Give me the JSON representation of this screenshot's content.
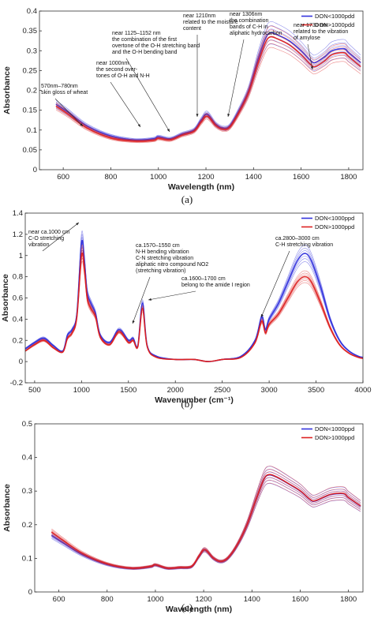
{
  "chart_data": [
    {
      "type": "line",
      "panel_label": "(a)",
      "xlabel": "Wavelength (nm)",
      "ylabel": "Absorbance",
      "xlim": [
        500,
        1860
      ],
      "ylim": [
        0,
        0.4
      ],
      "x_ticks": [
        600,
        800,
        1000,
        1200,
        1400,
        1600,
        1800
      ],
      "y_ticks": [
        0,
        0.05,
        0.1,
        0.15,
        0.2,
        0.25,
        0.3,
        0.35,
        0.4
      ],
      "legend_position": "top-right",
      "series": [
        {
          "name": "DON<1000pdd",
          "color": "#3333dd",
          "x": [
            570,
            620,
            700,
            800,
            900,
            980,
            1000,
            1050,
            1100,
            1150,
            1180,
            1205,
            1240,
            1270,
            1300,
            1340,
            1380,
            1420,
            1450,
            1470,
            1500,
            1550,
            1600,
            1640,
            1660,
            1700,
            1730,
            1780,
            1800,
            1850
          ],
          "y": [
            0.165,
            0.145,
            0.11,
            0.085,
            0.075,
            0.078,
            0.083,
            0.078,
            0.09,
            0.1,
            0.125,
            0.14,
            0.115,
            0.105,
            0.11,
            0.15,
            0.2,
            0.28,
            0.33,
            0.345,
            0.34,
            0.325,
            0.3,
            0.275,
            0.27,
            0.285,
            0.3,
            0.305,
            0.295,
            0.27
          ]
        },
        {
          "name": "DON>1000pdd",
          "color": "#dd2222",
          "x": [
            570,
            620,
            700,
            800,
            900,
            980,
            1000,
            1050,
            1100,
            1150,
            1180,
            1205,
            1240,
            1270,
            1300,
            1340,
            1380,
            1420,
            1450,
            1470,
            1500,
            1550,
            1600,
            1640,
            1660,
            1700,
            1730,
            1780,
            1800,
            1850
          ],
          "y": [
            0.16,
            0.14,
            0.105,
            0.08,
            0.072,
            0.074,
            0.079,
            0.075,
            0.087,
            0.097,
            0.12,
            0.135,
            0.112,
            0.102,
            0.107,
            0.145,
            0.195,
            0.27,
            0.32,
            0.335,
            0.33,
            0.315,
            0.29,
            0.265,
            0.26,
            0.275,
            0.29,
            0.295,
            0.285,
            0.26
          ]
        }
      ],
      "annotations": [
        {
          "lines": [
            "570nm–780nm",
            "skin gloss of wheat"
          ],
          "x": 740,
          "y": 0.16
        },
        {
          "lines": [
            "near 1000nm",
            "the second over-",
            "tones of O-H and N-H"
          ],
          "x": 960,
          "y": 0.12
        },
        {
          "lines": [
            "near 1125–1152 nm",
            "the combination of the first",
            "overtone of the O-H stretching band",
            "and the O-H bending band"
          ],
          "x": 1125,
          "y": 0.095
        },
        {
          "lines": [
            "near 1210nm",
            "related to the moisture",
            "content"
          ],
          "x": 1210,
          "y": 0.16
        },
        {
          "lines": [
            "near 1306nm",
            "the combination",
            "bands of C-H in",
            "aliphatic hydrocarbon"
          ],
          "x": 1306,
          "y": 0.145
        },
        {
          "lines": [
            "near 1730 nm",
            "related to the vibration",
            "of amylose"
          ],
          "x": 1650,
          "y": 0.315
        }
      ]
    },
    {
      "type": "line",
      "panel_label": "(b)",
      "xlabel": "Wavenumber (cm⁻¹)",
      "ylabel": "Absorbance",
      "xlim": [
        400,
        4000
      ],
      "ylim": [
        -0.2,
        1.4
      ],
      "x_ticks": [
        500,
        1000,
        1500,
        2000,
        2500,
        3000,
        3500,
        4000
      ],
      "y_ticks": [
        -0.2,
        0,
        0.2,
        0.4,
        0.6,
        0.8,
        1.0,
        1.2,
        1.4
      ],
      "legend_position": "top-right",
      "series": [
        {
          "name": "DON<1000ppd",
          "color": "#3333dd",
          "x": [
            400,
            500,
            600,
            700,
            800,
            850,
            900,
            950,
            1000,
            1030,
            1060,
            1100,
            1150,
            1200,
            1300,
            1400,
            1500,
            1550,
            1600,
            1650,
            1700,
            1800,
            2000,
            2200,
            2350,
            2500,
            2700,
            2850,
            2920,
            2960,
            3000,
            3100,
            3200,
            3300,
            3380,
            3450,
            3550,
            3650,
            3750,
            3850,
            3950,
            4000
          ],
          "y": [
            0.12,
            0.18,
            0.22,
            0.15,
            0.1,
            0.25,
            0.3,
            0.45,
            1.12,
            0.95,
            0.65,
            0.55,
            0.45,
            0.25,
            0.18,
            0.3,
            0.2,
            0.22,
            0.15,
            0.55,
            0.15,
            0.05,
            0.02,
            0.02,
            0.0,
            0.02,
            0.05,
            0.2,
            0.42,
            0.3,
            0.4,
            0.55,
            0.75,
            0.95,
            1.02,
            0.95,
            0.7,
            0.4,
            0.2,
            0.1,
            0.05,
            0.04
          ]
        },
        {
          "name": "DON>1000ppd",
          "color": "#dd2222",
          "x": [
            400,
            500,
            600,
            700,
            800,
            850,
            900,
            950,
            1000,
            1030,
            1060,
            1100,
            1150,
            1200,
            1300,
            1400,
            1500,
            1550,
            1600,
            1650,
            1700,
            1800,
            2000,
            2200,
            2350,
            2500,
            2700,
            2850,
            2920,
            2960,
            3000,
            3100,
            3200,
            3300,
            3380,
            3450,
            3550,
            3650,
            3750,
            3850,
            3950,
            4000
          ],
          "y": [
            0.1,
            0.16,
            0.2,
            0.13,
            0.09,
            0.22,
            0.27,
            0.42,
            1.0,
            0.88,
            0.6,
            0.5,
            0.42,
            0.23,
            0.16,
            0.28,
            0.18,
            0.2,
            0.14,
            0.5,
            0.14,
            0.04,
            0.02,
            0.02,
            0.0,
            0.02,
            0.04,
            0.18,
            0.38,
            0.27,
            0.35,
            0.45,
            0.6,
            0.75,
            0.8,
            0.75,
            0.55,
            0.32,
            0.16,
            0.08,
            0.04,
            0.03
          ]
        }
      ],
      "annotations": [
        {
          "lines": [
            "near ca.1000 cm",
            "C-O stretching",
            "vibration"
          ],
          "x": 1000,
          "y": 1.3
        },
        {
          "lines": [
            "ca.1570–1550 cm",
            "N-H bending vibration",
            "C-N stretching vibration",
            "aliphatic nitro compound NO2",
            "(stretching vibration)"
          ],
          "x": 1550,
          "y": 0.3
        },
        {
          "lines": [
            "ca.1600–1700 cm",
            "belong to the amide I region"
          ],
          "x": 1650,
          "y": 0.55
        },
        {
          "lines": [
            "ca.2800–3000 cm",
            "C-H stretching vibration"
          ],
          "x": 2920,
          "y": 0.48
        }
      ]
    },
    {
      "type": "line",
      "panel_label": "(c)",
      "xlabel": "Wavelength (nm)",
      "ylabel": "Absorbance",
      "xlim": [
        500,
        1860
      ],
      "ylim": [
        0,
        0.5
      ],
      "x_ticks": [
        600,
        800,
        1000,
        1200,
        1400,
        1600,
        1800
      ],
      "y_ticks": [
        0,
        0.1,
        0.2,
        0.3,
        0.4,
        0.5
      ],
      "legend_position": "top-right",
      "series": [
        {
          "name": "DON<1000ppd",
          "color": "#3333dd",
          "x": [
            570,
            620,
            700,
            800,
            900,
            980,
            1000,
            1050,
            1100,
            1150,
            1180,
            1205,
            1240,
            1270,
            1300,
            1340,
            1380,
            1420,
            1450,
            1470,
            1500,
            1550,
            1600,
            1640,
            1660,
            1700,
            1730,
            1780,
            1800,
            1850
          ],
          "y": [
            0.168,
            0.145,
            0.11,
            0.082,
            0.07,
            0.075,
            0.08,
            0.07,
            0.072,
            0.075,
            0.105,
            0.125,
            0.1,
            0.09,
            0.1,
            0.14,
            0.2,
            0.28,
            0.335,
            0.348,
            0.342,
            0.322,
            0.3,
            0.275,
            0.27,
            0.282,
            0.29,
            0.292,
            0.28,
            0.255
          ]
        },
        {
          "name": "DON>1000ppd",
          "color": "#dd2222",
          "x": [
            570,
            620,
            700,
            800,
            900,
            980,
            1000,
            1050,
            1100,
            1150,
            1180,
            1205,
            1240,
            1270,
            1300,
            1340,
            1380,
            1420,
            1450,
            1470,
            1500,
            1550,
            1600,
            1640,
            1660,
            1700,
            1730,
            1780,
            1800,
            1850
          ],
          "y": [
            0.178,
            0.152,
            0.114,
            0.084,
            0.071,
            0.076,
            0.081,
            0.071,
            0.073,
            0.076,
            0.106,
            0.126,
            0.101,
            0.091,
            0.101,
            0.141,
            0.201,
            0.281,
            0.336,
            0.349,
            0.343,
            0.323,
            0.301,
            0.276,
            0.271,
            0.283,
            0.291,
            0.293,
            0.281,
            0.256
          ]
        }
      ],
      "annotations": []
    }
  ]
}
